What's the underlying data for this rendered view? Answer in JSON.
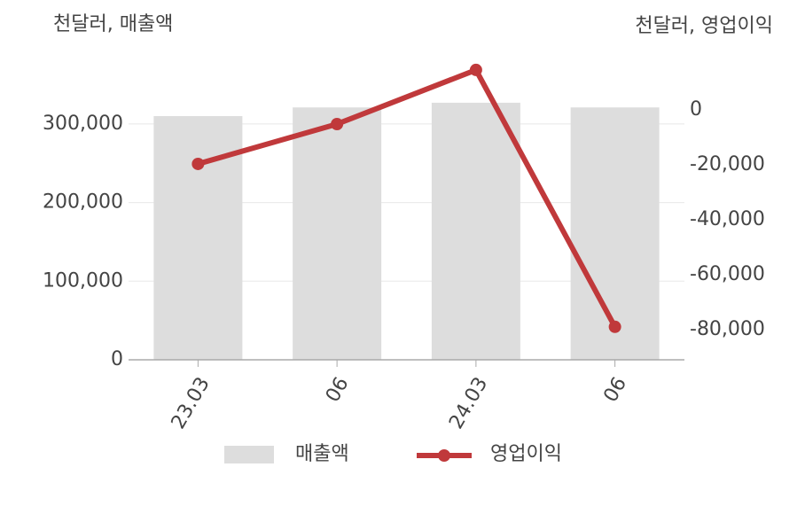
{
  "chart_data": {
    "type": "bar_line",
    "y_label": "천달러, 매출액",
    "y2_label": "천달러, 영업이익",
    "categories": [
      "23.03",
      "06",
      "24.03",
      "06"
    ],
    "series": [
      {
        "name": "매출액",
        "type": "bar",
        "color": "#dddddd",
        "values": [
          310000,
          321000,
          327000,
          321000
        ]
      },
      {
        "name": "영업이익",
        "type": "line",
        "axis": "y2",
        "color": "#c0393b",
        "values": [
          -19700,
          -5200,
          14500,
          -79000
        ]
      }
    ],
    "ylim": [
      0,
      390000
    ],
    "yticks": [
      0,
      {
        "value": 100000,
        "label": "100,000"
      },
      {
        "value": 200000,
        "label": "200,000"
      },
      {
        "value": 300000,
        "label": "300,000"
      }
    ],
    "y2lim": [
      -91000,
      20600
    ],
    "y2ticks": [
      0,
      {
        "value": -20000,
        "label": "-20,000"
      },
      {
        "value": -40000,
        "label": "-40,000"
      },
      {
        "value": -60000,
        "label": "-60,000"
      },
      {
        "value": -80000,
        "label": "-80,000"
      }
    ],
    "grid": true
  }
}
